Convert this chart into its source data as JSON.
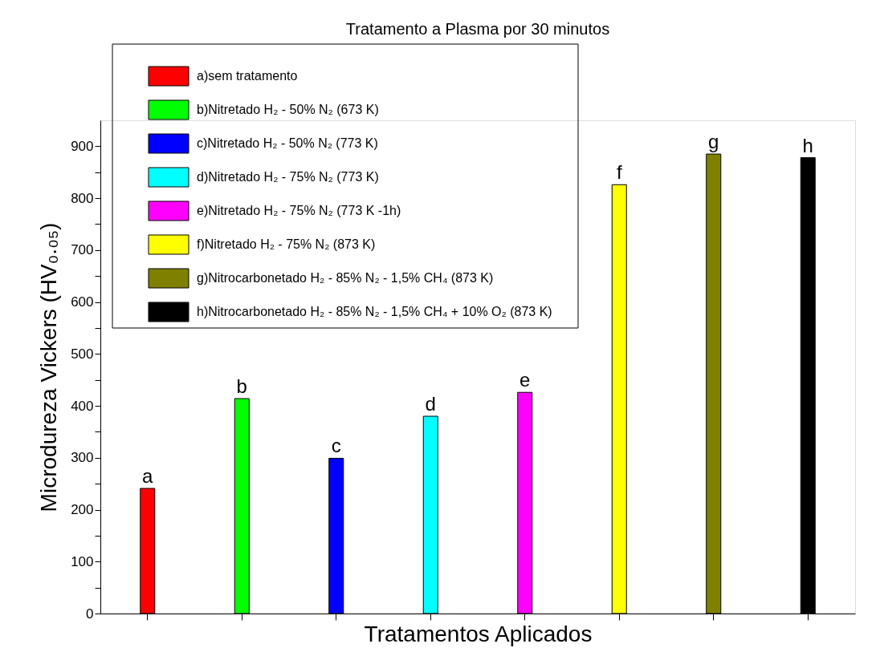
{
  "chart_data": {
    "type": "bar",
    "title": "Tratamento a Plasma por 30 minutos",
    "xlabel": "Tratamentos Aplicados",
    "ylabel": "Microdureza Vickers (HV₀.₀₅)",
    "categories": [
      null,
      null,
      null,
      null,
      null,
      null,
      null,
      null
    ],
    "series": [
      {
        "name": "a)sem tratamento",
        "color": "#ff0000",
        "values": [
          241,
          null,
          null,
          null,
          null,
          null,
          null,
          null
        ],
        "value_labels": [
          "a",
          null,
          null,
          null,
          null,
          null,
          null,
          null
        ]
      },
      {
        "name": "b)Nitretado H₂ - 50% N₂ (673 K)",
        "color": "#00ff00",
        "values": [
          null,
          414,
          null,
          null,
          null,
          null,
          null,
          null
        ],
        "value_labels": [
          null,
          "b",
          null,
          null,
          null,
          null,
          null,
          null
        ]
      },
      {
        "name": "c)Nitretado H₂ - 50% N₂ (773 K)",
        "color": "#0000ff",
        "values": [
          null,
          null,
          299,
          null,
          null,
          null,
          null,
          null
        ],
        "value_labels": [
          null,
          null,
          "c",
          null,
          null,
          null,
          null,
          null
        ]
      },
      {
        "name": "d)Nitretado H₂ - 75% N₂ (773 K)",
        "color": "#00ffff",
        "values": [
          null,
          null,
          null,
          380,
          null,
          null,
          null,
          null
        ],
        "value_labels": [
          null,
          null,
          null,
          "d",
          null,
          null,
          null,
          null
        ]
      },
      {
        "name": "e)Nitretado H₂ - 75% N₂ (773 K -1h)",
        "color": "#ff00ff",
        "values": [
          null,
          null,
          null,
          null,
          426,
          null,
          null,
          null
        ],
        "value_labels": [
          null,
          null,
          null,
          null,
          "e",
          null,
          null,
          null
        ]
      },
      {
        "name": "f)Nitretado H₂ - 75% N₂  (873 K)",
        "color": "#ffff00",
        "values": [
          null,
          null,
          null,
          null,
          null,
          826,
          null,
          null
        ],
        "value_labels": [
          null,
          null,
          null,
          null,
          null,
          "f",
          null,
          null
        ]
      },
      {
        "name": "g)Nitrocarbonetado H₂ - 85% N₂ - 1,5% CH₄ (873 K)",
        "color": "#808000",
        "values": [
          null,
          null,
          null,
          null,
          null,
          null,
          885,
          null
        ],
        "value_labels": [
          null,
          null,
          null,
          null,
          null,
          null,
          "g",
          null
        ]
      },
      {
        "name": "h)Nitrocarbonetado H₂ - 85% N₂ - 1,5% CH₄ + 10% O₂ (873 K)",
        "color": "#000000",
        "values": [
          null,
          null,
          null,
          null,
          null,
          null,
          null,
          878
        ],
        "value_labels": [
          null,
          null,
          null,
          null,
          null,
          null,
          null,
          "h"
        ]
      }
    ],
    "ylim": [
      0,
      950
    ],
    "yticks": [
      0,
      {
        "value": 50,
        "label": null
      },
      100,
      {
        "value": 150,
        "label": null
      },
      200,
      {
        "value": 250,
        "label": null
      },
      300,
      {
        "value": 350,
        "label": null
      },
      400,
      {
        "value": 450,
        "label": null
      },
      500,
      {
        "value": 550,
        "label": null
      },
      600,
      {
        "value": 650,
        "label": null
      },
      700,
      {
        "value": 750,
        "label": null
      },
      800,
      {
        "value": 850,
        "label": null
      },
      900
    ],
    "tick_labels": "y",
    "grid": false,
    "legend": "top left"
  }
}
